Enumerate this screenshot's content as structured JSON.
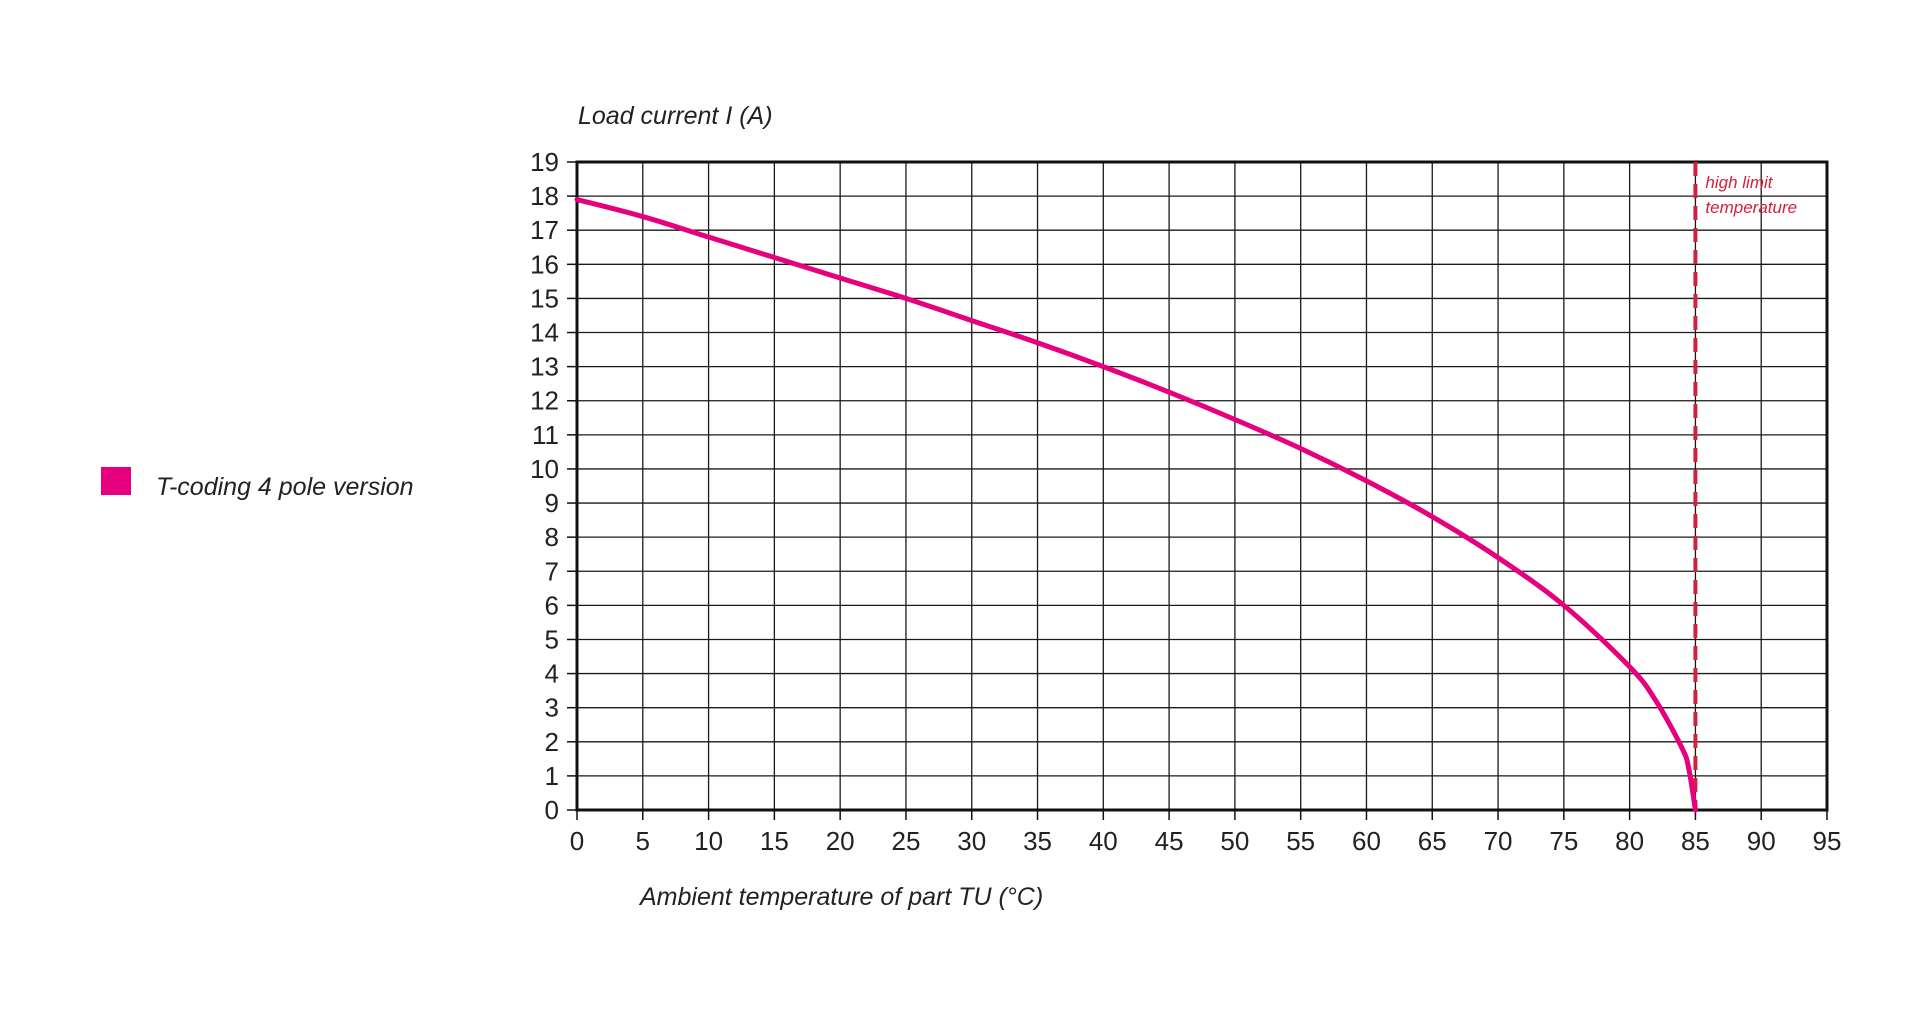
{
  "chart_data": {
    "type": "line",
    "ylabel": "Load current I (A)",
    "xlabel": "Ambient temperature of part TU (°C)",
    "xlim": [
      0,
      95
    ],
    "ylim": [
      0,
      19
    ],
    "x_ticks": [
      0,
      5,
      10,
      15,
      20,
      25,
      30,
      35,
      40,
      45,
      50,
      55,
      60,
      65,
      70,
      75,
      80,
      85,
      90,
      95
    ],
    "y_ticks": [
      0,
      1,
      2,
      3,
      4,
      5,
      6,
      7,
      8,
      9,
      10,
      11,
      12,
      13,
      14,
      15,
      16,
      17,
      18,
      19
    ],
    "grid": true,
    "legend_position": "left",
    "series": [
      {
        "name": "T-coding 4 pole version",
        "color": "#e6007e",
        "x": [
          0,
          5,
          10,
          15,
          20,
          25,
          30,
          35,
          40,
          45,
          50,
          55,
          60,
          65,
          70,
          75,
          80,
          82,
          84,
          84.5,
          85
        ],
        "y": [
          17.9,
          17.4,
          16.8,
          16.2,
          15.6,
          15.0,
          14.35,
          13.7,
          13.0,
          12.25,
          11.45,
          10.6,
          9.65,
          8.6,
          7.4,
          6.0,
          4.2,
          3.2,
          1.8,
          1.2,
          0
        ]
      }
    ],
    "annotations": [
      {
        "type": "vertical_line",
        "x": 85,
        "style": "dashed",
        "color": "#d6203b",
        "text_lines": [
          "high limit",
          "temperature"
        ]
      }
    ]
  }
}
